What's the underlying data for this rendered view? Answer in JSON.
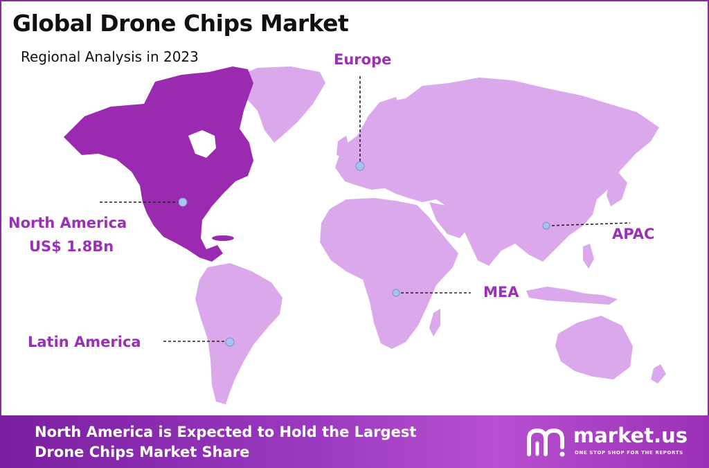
{
  "header": {
    "title": "Global Drone Chips Market",
    "subtitle": "Regional Analysis in 2023"
  },
  "regions": {
    "europe": {
      "label": "Europe"
    },
    "north_america": {
      "label": "North America",
      "value": "US$ 1.8Bn"
    },
    "apac": {
      "label": "APAC"
    },
    "mea": {
      "label": "MEA"
    },
    "latin_america": {
      "label": "Latin America"
    }
  },
  "footer": {
    "line1": "North America is Expected to Hold the Largest",
    "line2": "Drone Chips Market Share"
  },
  "brand": {
    "name": "market.us",
    "tagline": "ONE STOP SHOP FOR THE REPORTS"
  },
  "colors": {
    "highlight_region": "#9a2ab0",
    "other_regions": "#dba8ec",
    "label_text": "#9a30b5",
    "marker": "#a9c3f0",
    "footer_band": "#9b3ac0"
  }
}
